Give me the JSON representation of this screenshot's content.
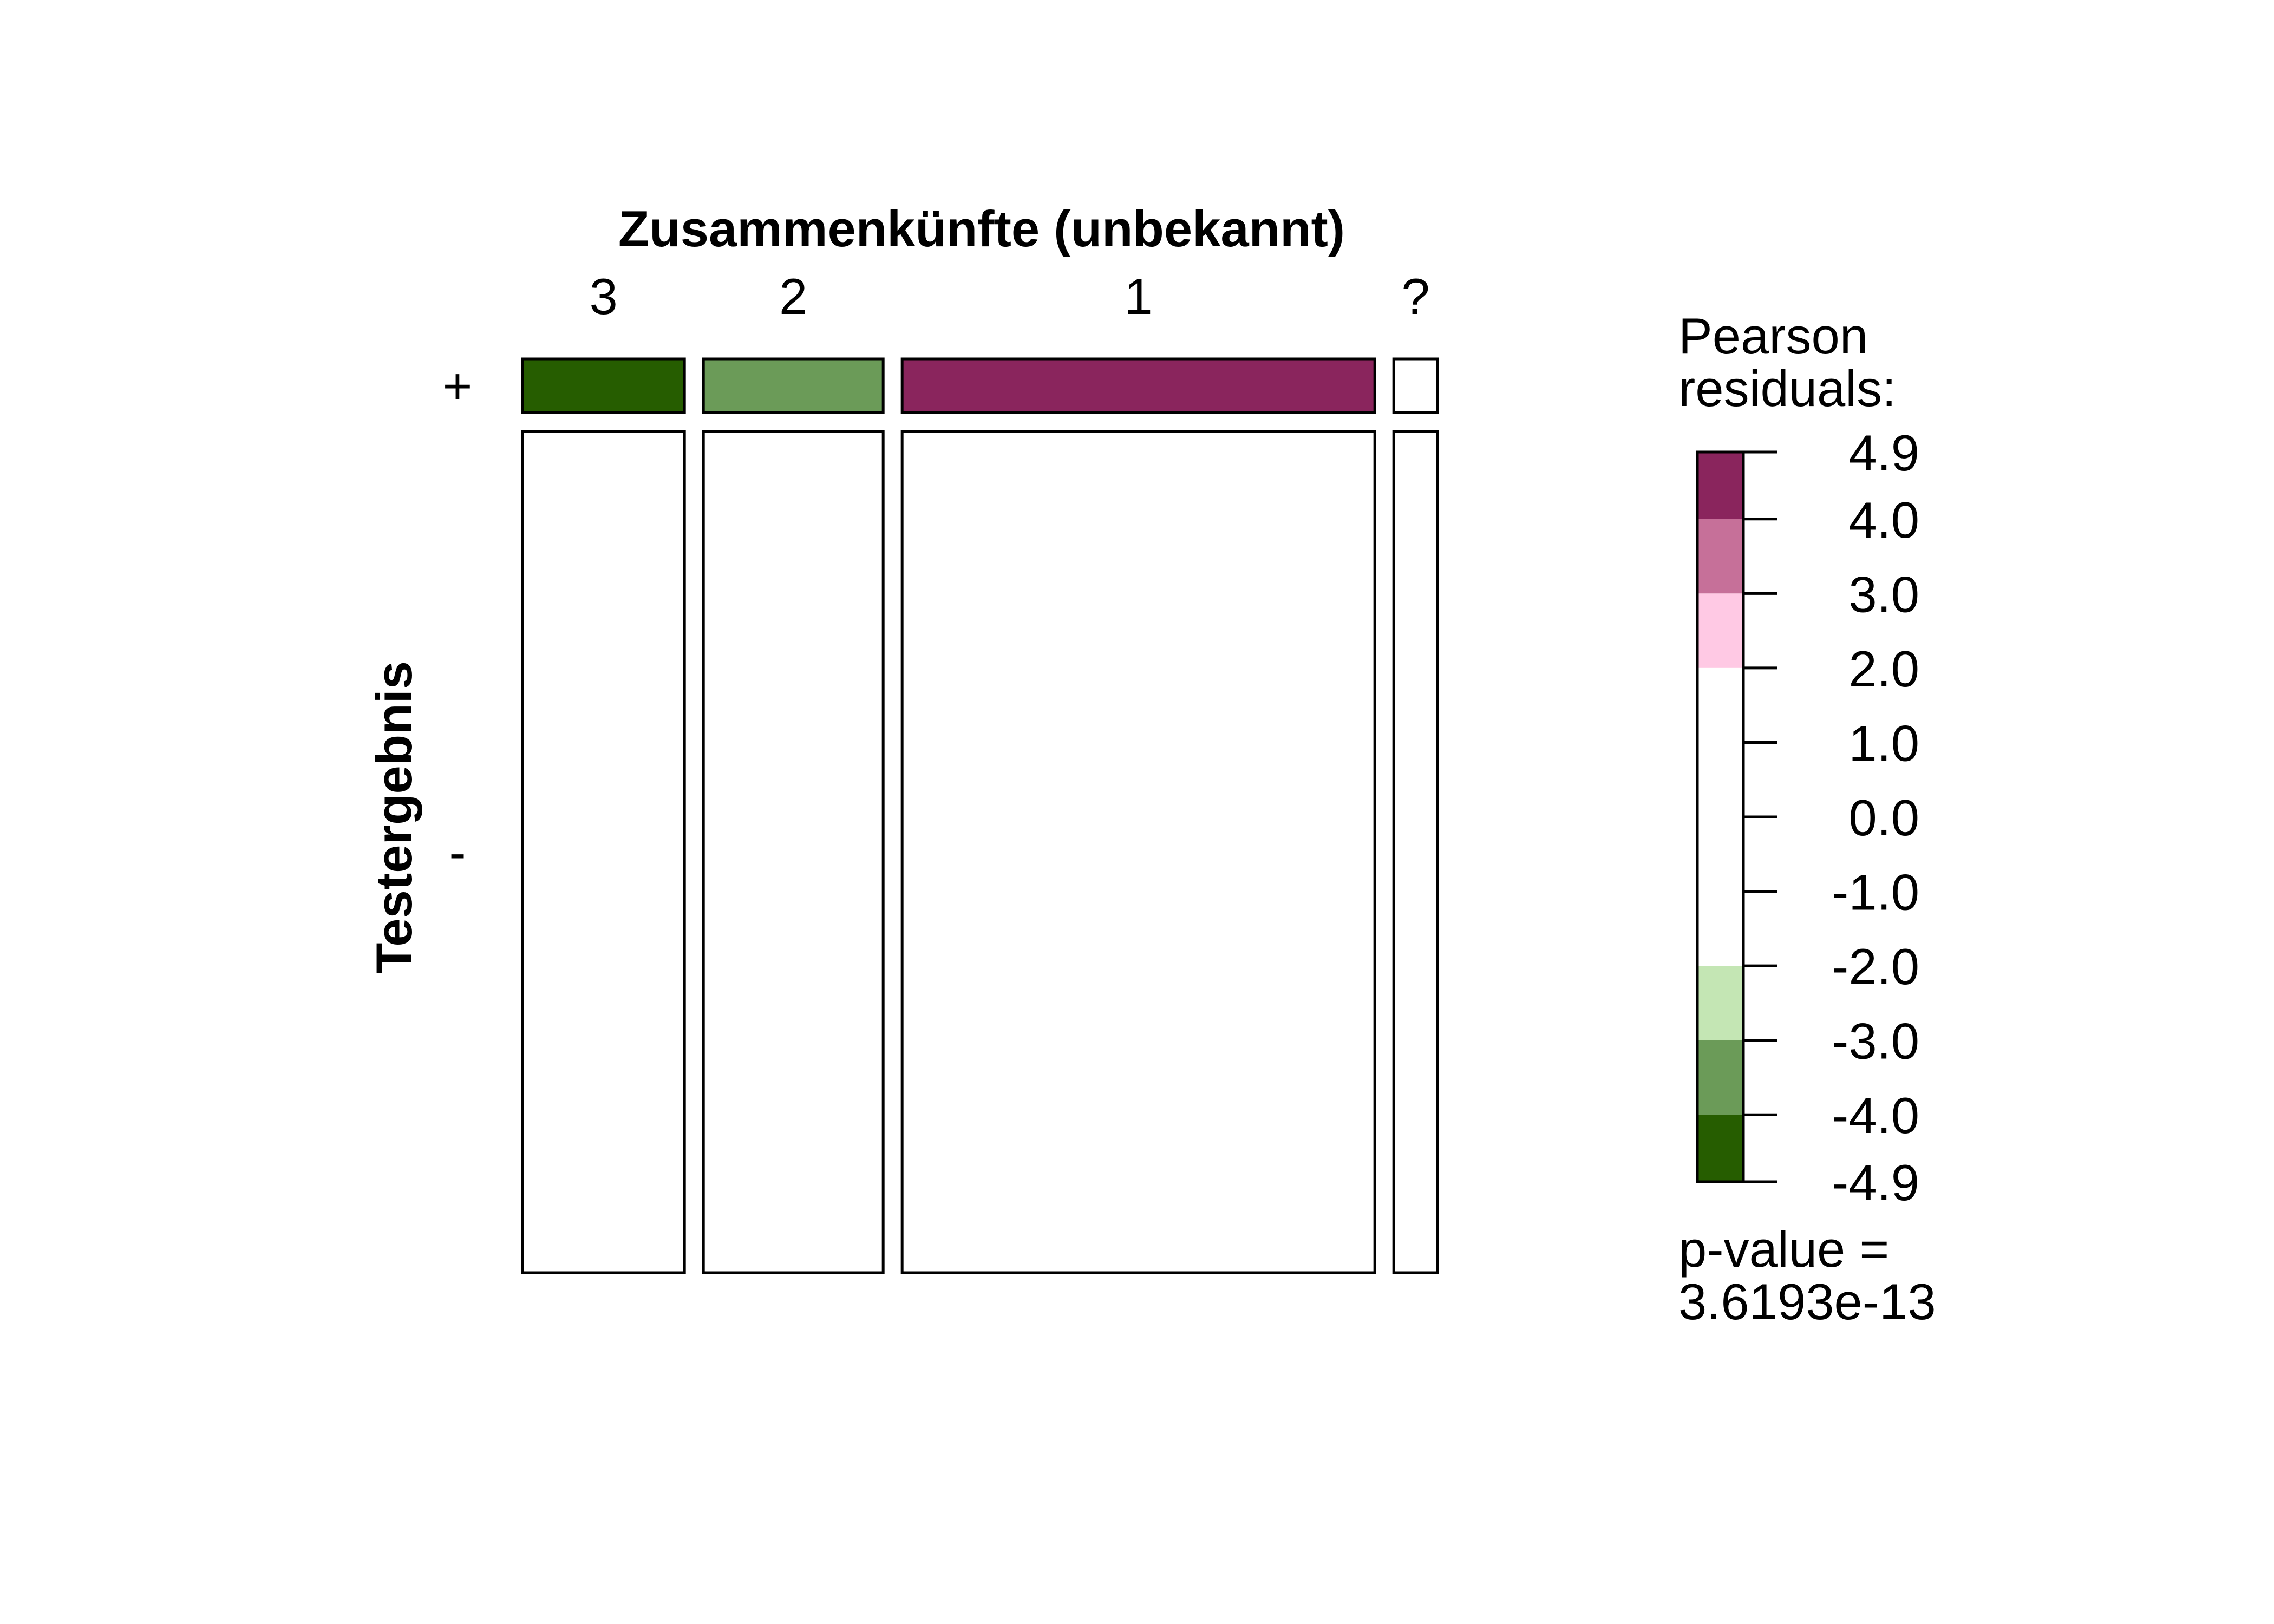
{
  "chart_data": {
    "type": "mosaic",
    "title": "",
    "xlabel": "Zusammenkünfte (unbekannt)",
    "ylabel": "Testergebnis",
    "columns": [
      "3",
      "2",
      "1",
      "?"
    ],
    "rows": [
      "+",
      "-"
    ],
    "column_proportions": [
      0.1825,
      0.2025,
      0.5325,
      0.0493
    ],
    "row_proportions": [
      0.06,
      0.94
    ],
    "cells": [
      {
        "column": "3",
        "row": "+",
        "residual": -4.3,
        "fill": "#265d00"
      },
      {
        "column": "2",
        "row": "+",
        "residual": -3.5,
        "fill": "#6b9b58"
      },
      {
        "column": "1",
        "row": "+",
        "residual": 4.5,
        "fill": "#8a255d"
      },
      {
        "column": "?",
        "row": "+",
        "residual": 0.3,
        "fill": "#ffffff"
      },
      {
        "column": "3",
        "row": "-",
        "residual": 1.0,
        "fill": "#ffffff"
      },
      {
        "column": "2",
        "row": "-",
        "residual": 0.8,
        "fill": "#ffffff"
      },
      {
        "column": "1",
        "row": "-",
        "residual": -1.0,
        "fill": "#ffffff"
      },
      {
        "column": "?",
        "row": "-",
        "residual": -0.1,
        "fill": "#ffffff"
      }
    ],
    "legend": {
      "title_lines": [
        "Pearson",
        "residuals:"
      ],
      "ticks": [
        4.9,
        4.0,
        3.0,
        2.0,
        1.0,
        0.0,
        -1.0,
        -2.0,
        -3.0,
        -4.0,
        -4.9
      ],
      "tick_labels": [
        "4.9",
        "4.0",
        "3.0",
        "2.0",
        "1.0",
        "0.0",
        "-1.0",
        "-2.0",
        "-3.0",
        "-4.0",
        "-4.9"
      ],
      "bands": [
        {
          "from": 4.0,
          "to": 4.9,
          "color": "#8a255d"
        },
        {
          "from": 3.0,
          "to": 4.0,
          "color": "#c67099"
        },
        {
          "from": 2.0,
          "to": 3.0,
          "color": "#ffc9e4"
        },
        {
          "from": -2.0,
          "to": 2.0,
          "color": "#ffffff"
        },
        {
          "from": -3.0,
          "to": -2.0,
          "color": "#c4e6b4"
        },
        {
          "from": -4.0,
          "to": -3.0,
          "color": "#6b9b58"
        },
        {
          "from": -4.9,
          "to": -4.0,
          "color": "#265d00"
        }
      ],
      "pvalue_lines": [
        "p-value =",
        "3.6193e-13"
      ]
    }
  }
}
